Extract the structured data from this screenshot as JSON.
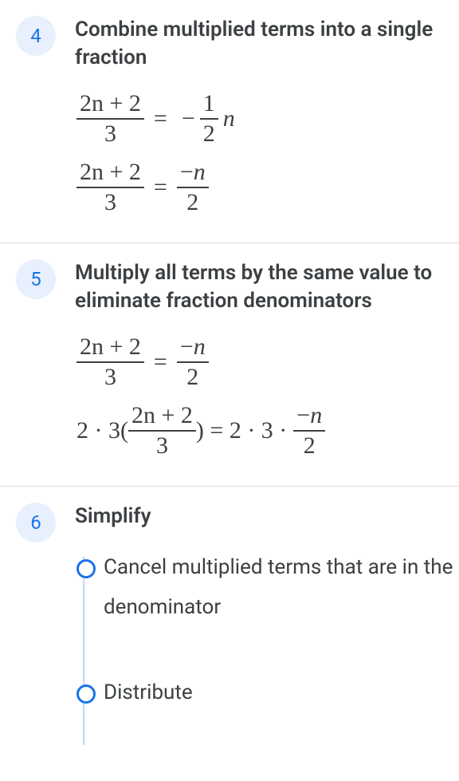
{
  "steps": [
    {
      "number": "4",
      "title": "Combine multiplied terms into a single fraction",
      "eq1": {
        "lhs_num": "2n + 2",
        "lhs_den": "3",
        "rhs_sign": "−",
        "rhs_frac_num": "1",
        "rhs_frac_den": "2",
        "rhs_tail": "n"
      },
      "eq2": {
        "lhs_num": "2n + 2",
        "lhs_den": "3",
        "rhs_num": "−n",
        "rhs_den": "2"
      }
    },
    {
      "number": "5",
      "title": "Multiply all terms by the same value to eliminate fraction denominators",
      "eq1": {
        "lhs_num": "2n + 2",
        "lhs_den": "3",
        "rhs_num": "−n",
        "rhs_den": "2"
      },
      "eq2": {
        "pre": "2 · 3(",
        "mid_num": "2n + 2",
        "mid_den": "3",
        "post1": ") = 2 · 3 ·",
        "rhs_num": "−n",
        "rhs_den": "2"
      }
    },
    {
      "number": "6",
      "title": "Simplify",
      "substeps": [
        "Cancel multiplied terms that are in the denominator",
        "Distribute"
      ]
    }
  ],
  "colors": {
    "badge_bg": "#e8f0fe",
    "badge_fg": "#1a73e8",
    "text": "#3c4043",
    "divider": "#dadce0",
    "timeline": "#c7d7f3"
  }
}
